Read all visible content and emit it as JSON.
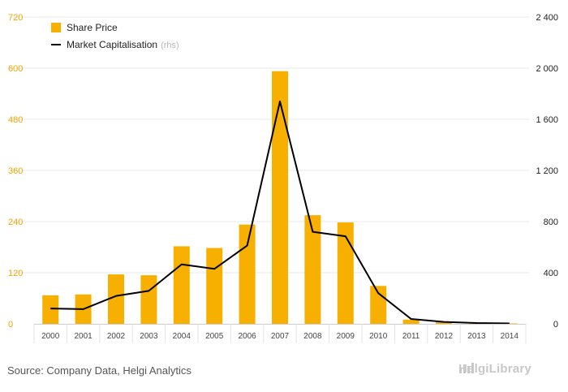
{
  "chart_data": {
    "type": "bar",
    "categories": [
      "2000",
      "2001",
      "2002",
      "2003",
      "2004",
      "2005",
      "2006",
      "2007",
      "2008",
      "2009",
      "2010",
      "2011",
      "2012",
      "2013",
      "2014"
    ],
    "series": [
      {
        "name": "Share Price",
        "type": "bar",
        "axis": "left",
        "values": [
          67,
          69,
          116,
          114,
          182,
          178,
          233,
          593,
          255,
          238,
          89,
          10,
          4,
          2,
          1
        ]
      },
      {
        "name": "Market Capitalisation",
        "name_suffix": "(rhs)",
        "type": "line",
        "axis": "right",
        "values": [
          120,
          115,
          218,
          258,
          465,
          430,
          612,
          1740,
          720,
          685,
          240,
          38,
          15,
          6,
          3
        ]
      }
    ],
    "left_axis": {
      "ylim": [
        0,
        720
      ],
      "ticks": [
        "0",
        "120",
        "240",
        "360",
        "480",
        "600",
        "720"
      ]
    },
    "right_axis": {
      "ylim": [
        0,
        2400
      ],
      "ticks": [
        "0",
        "400",
        "800",
        "1 200",
        "1 600",
        "2 000",
        "2 400"
      ]
    },
    "grid": true,
    "legend_position": "top-left",
    "colors": {
      "bar": "#f7b000",
      "line": "#000000",
      "left_ticks": "#f0a500"
    }
  },
  "footer": {
    "source": "Source: Company Data, Helgi Analytics",
    "brand": "HelgiLibrary",
    "brand_icon": "bar-chart-icon"
  }
}
